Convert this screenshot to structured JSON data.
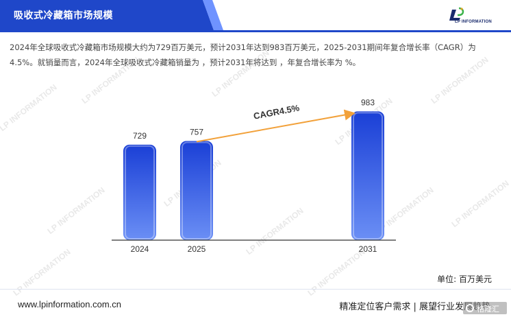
{
  "header": {
    "title": "吸收式冷藏箱市场规模",
    "logo_text": "LP INFORMATION"
  },
  "description": "2024年全球吸收式冷藏箱市场规模大约为729百万美元，预计2031年达到983百万美元，2025-2031期间年复合增长率（CAGR）为4.5%。就销量而言，2024年全球吸收式冷藏箱销量为 ，预计2031年将达到 ，年复合增长率为 %。",
  "watermark": "LP INFORMATION",
  "chart_data": {
    "type": "bar",
    "categories": [
      "2024",
      "2025",
      "2031"
    ],
    "values": [
      729,
      757,
      983
    ],
    "data_labels": [
      "729",
      "757",
      "983"
    ],
    "annotation": "CAGR4.5%",
    "unit_label": "单位: 百万美元",
    "ylim": [
      0,
      1000
    ],
    "grid": false,
    "colors": {
      "bar_top": "#1a3fd6",
      "bar_bottom": "#6b8ff5",
      "arrow": "#f2a13a",
      "axis": "#333333"
    }
  },
  "footer": {
    "url": "www.lpinformation.com.cn",
    "slogan": "精准定位客户需求 | 展望行业发展趋势",
    "badge": "格隆汇"
  },
  "colors": {
    "brand": "#1f47c9",
    "brand_light": "#6f93ff"
  }
}
